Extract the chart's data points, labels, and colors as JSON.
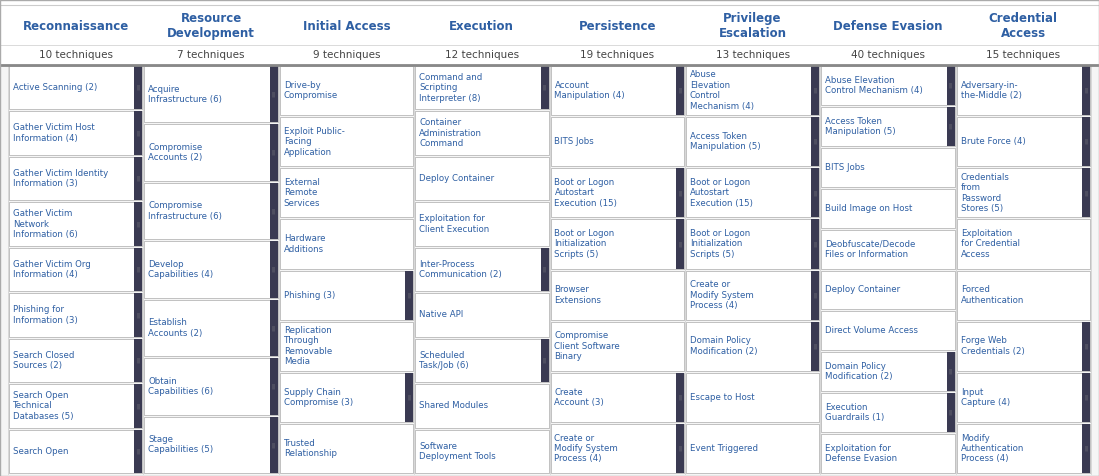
{
  "bg_color": "#f5f5f5",
  "cell_bg": "#ffffff",
  "header_text_color": "#2E5FA3",
  "sub_color": "#444444",
  "cell_text_color": "#2E5FA3",
  "border_color": "#aaaaaa",
  "dark_bar_color": "#3a3a52",
  "bar_symbol": "||",
  "columns": [
    {
      "name": "Reconnaissance",
      "techniques": "10 techniques",
      "items": [
        {
          "text": "Active Scanning (2)",
          "bar": true
        },
        {
          "text": "Gather Victim Host\nInformation (4)",
          "bar": true
        },
        {
          "text": "Gather Victim Identity\nInformation (3)",
          "bar": true
        },
        {
          "text": "Gather Victim\nNetwork\nInformation (6)",
          "bar": true
        },
        {
          "text": "Gather Victim Org\nInformation (4)",
          "bar": true
        },
        {
          "text": "Phishing for\nInformation (3)",
          "bar": true
        },
        {
          "text": "Search Closed\nSources (2)",
          "bar": true
        },
        {
          "text": "Search Open\nTechnical\nDatabases (5)",
          "bar": true
        },
        {
          "text": "Search Open",
          "bar": true
        }
      ]
    },
    {
      "name": "Resource\nDevelopment",
      "techniques": "7 techniques",
      "items": [
        {
          "text": "Acquire\nInfrastructure (6)",
          "bar": true
        },
        {
          "text": "Compromise\nAccounts (2)",
          "bar": true
        },
        {
          "text": "Compromise\nInfrastructure (6)",
          "bar": true
        },
        {
          "text": "Develop\nCapabilities (4)",
          "bar": true
        },
        {
          "text": "Establish\nAccounts (2)",
          "bar": true
        },
        {
          "text": "Obtain\nCapabilities (6)",
          "bar": true
        },
        {
          "text": "Stage\nCapabilities (5)",
          "bar": true
        }
      ]
    },
    {
      "name": "Initial Access",
      "techniques": "9 techniques",
      "items": [
        {
          "text": "Drive-by\nCompromise",
          "bar": false
        },
        {
          "text": "Exploit Public-\nFacing\nApplication",
          "bar": false
        },
        {
          "text": "External\nRemote\nServices",
          "bar": false
        },
        {
          "text": "Hardware\nAdditions",
          "bar": false
        },
        {
          "text": "Phishing (3)",
          "bar": true
        },
        {
          "text": "Replication\nThrough\nRemovable\nMedia",
          "bar": false
        },
        {
          "text": "Supply Chain\nCompromise (3)",
          "bar": true
        },
        {
          "text": "Trusted\nRelationship",
          "bar": false
        }
      ]
    },
    {
      "name": "Execution",
      "techniques": "12 techniques",
      "items": [
        {
          "text": "Command and\nScripting\nInterpreter (8)",
          "bar": true
        },
        {
          "text": "Container\nAdministration\nCommand",
          "bar": false
        },
        {
          "text": "Deploy Container",
          "bar": false
        },
        {
          "text": "Exploitation for\nClient Execution",
          "bar": false
        },
        {
          "text": "Inter-Process\nCommunication (2)",
          "bar": true
        },
        {
          "text": "Native API",
          "bar": false
        },
        {
          "text": "Scheduled\nTask/Job (6)",
          "bar": true
        },
        {
          "text": "Shared Modules",
          "bar": false
        },
        {
          "text": "Software\nDeployment Tools",
          "bar": false
        }
      ]
    },
    {
      "name": "Persistence",
      "techniques": "19 techniques",
      "items": [
        {
          "text": "Account\nManipulation (4)",
          "bar": true
        },
        {
          "text": "BITS Jobs",
          "bar": false
        },
        {
          "text": "Boot or Logon\nAutostart\nExecution (15)",
          "bar": true
        },
        {
          "text": "Boot or Logon\nInitialization\nScripts (5)",
          "bar": true
        },
        {
          "text": "Browser\nExtensions",
          "bar": false
        },
        {
          "text": "Compromise\nClient Software\nBinary",
          "bar": false
        },
        {
          "text": "Create\nAccount (3)",
          "bar": true
        },
        {
          "text": "Create or\nModify System\nProcess (4)",
          "bar": true
        }
      ]
    },
    {
      "name": "Privilege\nEscalation",
      "techniques": "13 techniques",
      "items": [
        {
          "text": "Abuse\nElevation\nControl\nMechanism (4)",
          "bar": true
        },
        {
          "text": "Access Token\nManipulation (5)",
          "bar": true
        },
        {
          "text": "Boot or Logon\nAutostart\nExecution (15)",
          "bar": true
        },
        {
          "text": "Boot or Logon\nInitialization\nScripts (5)",
          "bar": true
        },
        {
          "text": "Create or\nModify System\nProcess (4)",
          "bar": true
        },
        {
          "text": "Domain Policy\nModification (2)",
          "bar": true
        },
        {
          "text": "Escape to Host",
          "bar": false
        },
        {
          "text": "Event Triggered",
          "bar": false
        }
      ]
    },
    {
      "name": "Defense Evasion",
      "techniques": "40 techniques",
      "items": [
        {
          "text": "Abuse Elevation\nControl Mechanism (4)",
          "bar": true
        },
        {
          "text": "Access Token\nManipulation (5)",
          "bar": true
        },
        {
          "text": "BITS Jobs",
          "bar": false
        },
        {
          "text": "Build Image on Host",
          "bar": false
        },
        {
          "text": "Deobfuscate/Decode\nFiles or Information",
          "bar": false
        },
        {
          "text": "Deploy Container",
          "bar": false
        },
        {
          "text": "Direct Volume Access",
          "bar": false
        },
        {
          "text": "Domain Policy\nModification (2)",
          "bar": true
        },
        {
          "text": "Execution\nGuardrails (1)",
          "bar": true
        },
        {
          "text": "Exploitation for\nDefense Evasion",
          "bar": false
        }
      ]
    },
    {
      "name": "Credential\nAccess",
      "techniques": "15 techniques",
      "items": [
        {
          "text": "Adversary-in-\nthe-Middle (2)",
          "bar": true
        },
        {
          "text": "Brute Force (4)",
          "bar": true
        },
        {
          "text": "Credentials\nfrom\nPassword\nStores (5)",
          "bar": true
        },
        {
          "text": "Exploitation\nfor Credential\nAccess",
          "bar": false
        },
        {
          "text": "Forced\nAuthentication",
          "bar": false
        },
        {
          "text": "Forge Web\nCredentials (2)",
          "bar": true
        },
        {
          "text": "Input\nCapture (4)",
          "bar": true
        },
        {
          "text": "Modify\nAuthentication\nProcess (4)",
          "bar": true
        }
      ]
    }
  ]
}
